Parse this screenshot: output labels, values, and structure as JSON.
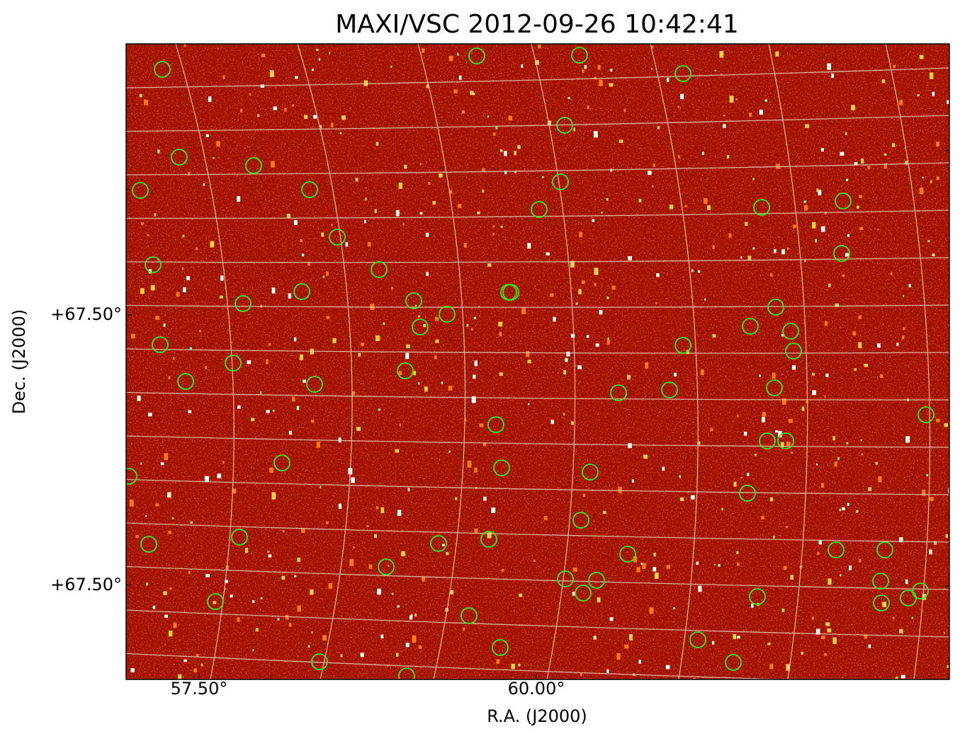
{
  "title": "MAXI/VSC 2012-09-26 10:42:41",
  "x_axis": {
    "label": "R.A. (J2000)",
    "ticks": [
      "57.50°",
      "60.00°"
    ]
  },
  "y_axis": {
    "label": "Dec. (J2000)",
    "ticks": [
      "+67.50°",
      "+67.50°"
    ]
  }
}
